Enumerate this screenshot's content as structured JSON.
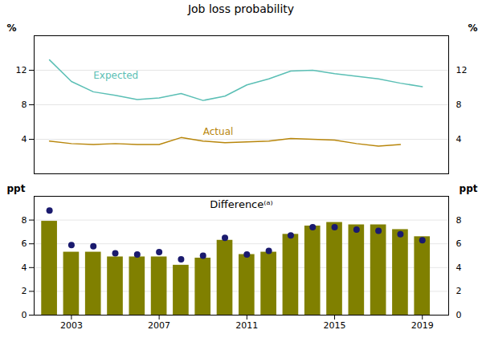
{
  "chart_data": [
    {
      "type": "line",
      "title": "Job loss probability",
      "x": [
        2002,
        2003,
        2004,
        2005,
        2006,
        2007,
        2008,
        2009,
        2010,
        2011,
        2012,
        2013,
        2014,
        2015,
        2016,
        2017,
        2018,
        2019
      ],
      "series": [
        {
          "name": "Expected",
          "color": "#5bbfb5",
          "values": [
            13.2,
            10.7,
            9.5,
            9.1,
            8.6,
            8.8,
            9.3,
            8.5,
            9.0,
            10.3,
            11.0,
            11.9,
            12.0,
            11.6,
            11.3,
            11.0,
            10.5,
            10.1
          ]
        },
        {
          "name": "Actual",
          "color": "#b8860b",
          "values": [
            3.8,
            3.5,
            3.4,
            3.5,
            3.4,
            3.4,
            4.2,
            3.8,
            3.6,
            3.7,
            3.8,
            4.1,
            4.0,
            3.9,
            3.5,
            3.2,
            3.4,
            null
          ]
        }
      ],
      "xlim": [
        2001.3,
        2020.2
      ],
      "ylim": [
        0,
        16
      ],
      "yticks": [
        4,
        8,
        12
      ],
      "y2lim": [
        0,
        16
      ],
      "y2ticks": [
        4,
        8,
        12
      ],
      "ylabel": "%",
      "y2label": "%",
      "grid": true,
      "tick_labels": "y"
    },
    {
      "type": "bar",
      "title": "Difference⁽ᵃ⁾",
      "x": [
        2002,
        2003,
        2004,
        2005,
        2006,
        2007,
        2008,
        2009,
        2010,
        2011,
        2012,
        2013,
        2014,
        2015,
        2016,
        2017,
        2018,
        2019
      ],
      "series": [
        {
          "type": "bar",
          "color": "#808000",
          "values": [
            7.9,
            5.3,
            5.3,
            4.9,
            4.9,
            4.9,
            4.2,
            4.8,
            6.3,
            5.1,
            5.3,
            6.8,
            7.5,
            7.8,
            7.6,
            7.6,
            7.2,
            6.6
          ]
        },
        {
          "type": "scatter",
          "color": "#1a1a6e",
          "values": [
            8.8,
            5.9,
            5.8,
            5.2,
            5.1,
            5.3,
            4.7,
            5.0,
            6.5,
            5.1,
            5.4,
            6.7,
            7.4,
            7.4,
            7.2,
            7.1,
            6.8,
            6.3
          ]
        }
      ],
      "xlim": [
        2001.3,
        2020.2
      ],
      "xticks": [
        2003,
        2007,
        2011,
        2015,
        2019
      ],
      "ylim": [
        0,
        10
      ],
      "yticks": [
        0,
        2,
        4,
        6,
        8
      ],
      "y2lim": [
        0,
        10
      ],
      "y2ticks": [
        0,
        2,
        4,
        6,
        8
      ],
      "ylabel": "ppt",
      "y2label": "ppt",
      "grid": true
    }
  ]
}
